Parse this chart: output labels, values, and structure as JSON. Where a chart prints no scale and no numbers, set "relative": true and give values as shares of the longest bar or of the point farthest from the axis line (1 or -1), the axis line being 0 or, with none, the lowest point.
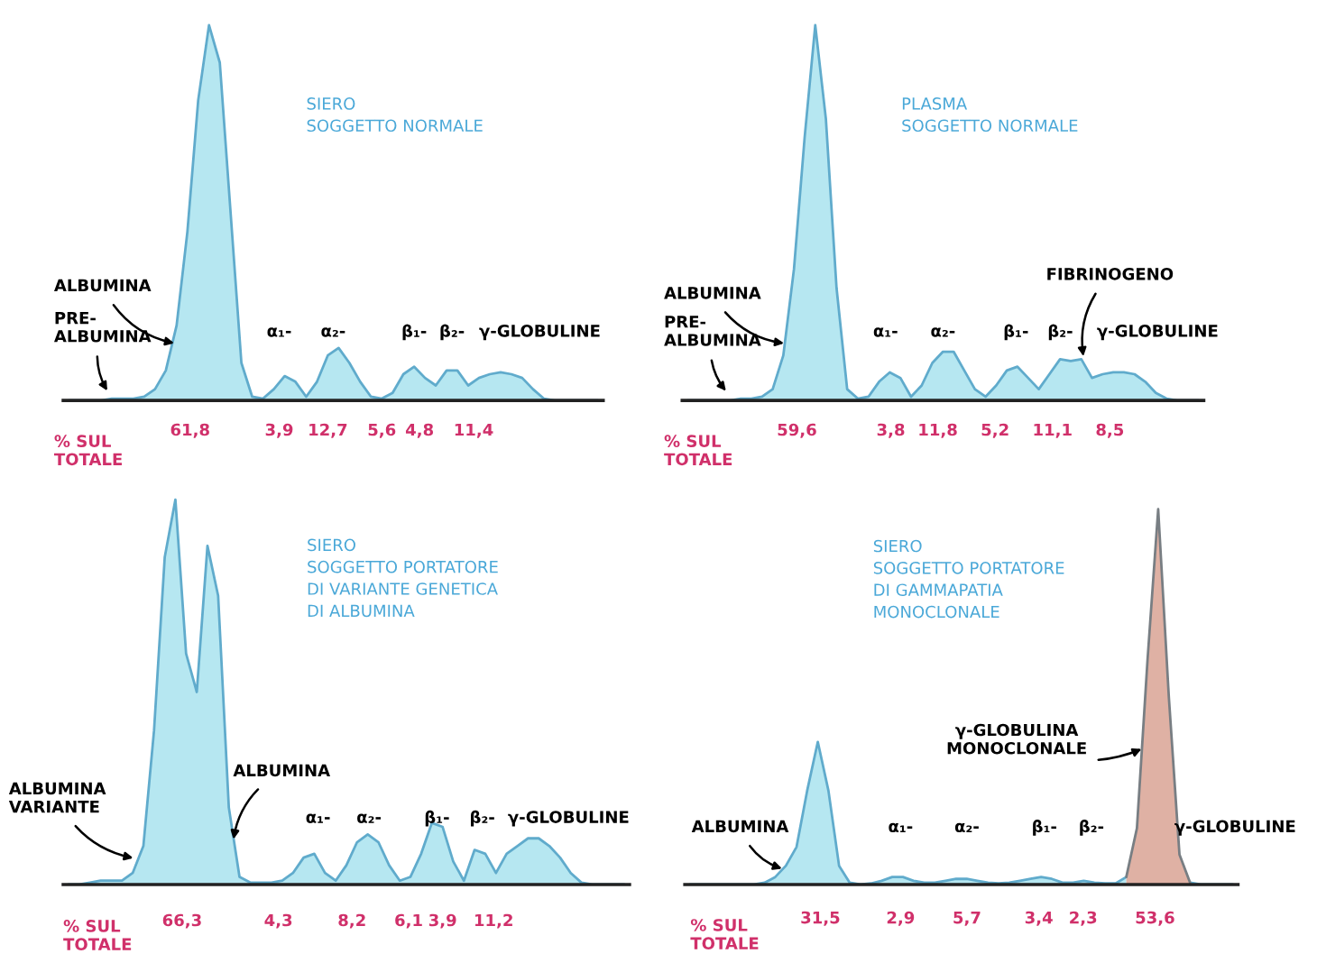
{
  "chart_data": [
    {
      "type": "area",
      "relative": true,
      "title": "SIERO\nSOGGETTO NORMALE",
      "categories": [
        null,
        null,
        null,
        null,
        null,
        null,
        null,
        null,
        null,
        null,
        null,
        null,
        null,
        null,
        null,
        null,
        null,
        null,
        null,
        null,
        null,
        null,
        null,
        null,
        null,
        null,
        null,
        null,
        null,
        null,
        null,
        null,
        null,
        null,
        null,
        null,
        null,
        null,
        null,
        null,
        null,
        null,
        null,
        null,
        null,
        null,
        null,
        null,
        null,
        null
      ],
      "series": [
        {
          "color": "#aee4f0",
          "values": [
            0,
            0,
            0,
            0,
            0.005,
            0.005,
            0.005,
            0.01,
            0.03,
            0.08,
            0.2,
            0.45,
            0.8,
            1,
            0.9,
            0.5,
            0.1,
            0.01,
            0.005,
            0.03,
            0.065,
            0.05,
            0.01,
            0.05,
            0.12,
            0.14,
            0.1,
            0.05,
            0.01,
            0.005,
            0.02,
            0.07,
            0.09,
            0.06,
            0.04,
            0.08,
            0.08,
            0.04,
            0.06,
            0.07,
            0.075,
            0.07,
            0.06,
            0.03,
            0.005,
            0,
            0,
            0,
            0,
            0
          ]
        }
      ],
      "annotations": [
        "ALBUMINA",
        "PRE-\nALBUMINA",
        "α₁-",
        "α₂-",
        "β₁-",
        "β₂-",
        "γ-GLOBULINE",
        "% SUL\nTOTALE",
        "61,8",
        "3,9",
        "12,7",
        "5,6",
        "4,8",
        "11,4"
      ]
    },
    {
      "type": "area",
      "relative": true,
      "title": "PLASMA\nSOGGETTO NORMALE",
      "categories": [
        null,
        null,
        null,
        null,
        null,
        null,
        null,
        null,
        null,
        null,
        null,
        null,
        null,
        null,
        null,
        null,
        null,
        null,
        null,
        null,
        null,
        null,
        null,
        null,
        null,
        null,
        null,
        null,
        null,
        null,
        null,
        null,
        null,
        null,
        null,
        null,
        null,
        null,
        null,
        null,
        null,
        null,
        null,
        null,
        null,
        null,
        null,
        null,
        null
      ],
      "series": [
        {
          "color": "#aee4f0",
          "values": [
            0,
            0,
            0,
            0,
            0,
            0.005,
            0.005,
            0.01,
            0.03,
            0.12,
            0.35,
            0.7,
            1,
            0.75,
            0.3,
            0.03,
            0.005,
            0.01,
            0.05,
            0.075,
            0.06,
            0.01,
            0.04,
            0.1,
            0.13,
            0.13,
            0.08,
            0.03,
            0.01,
            0.04,
            0.08,
            0.09,
            0.06,
            0.03,
            0.07,
            0.11,
            0.105,
            0.11,
            0.06,
            0.07,
            0.075,
            0.075,
            0.07,
            0.05,
            0.02,
            0.005,
            0,
            0,
            0
          ]
        }
      ],
      "annotations": [
        "FIBRINOGENO",
        "ALBUMINA",
        "PRE-\nALBUMINA",
        "α₁-",
        "α₂-",
        "β₁-",
        "β₂-",
        "γ-GLOBULINE",
        "% SUL\nTOTALE",
        "59,6",
        "3,8",
        "11,8",
        "5,2",
        "11,1",
        "8,5"
      ]
    },
    {
      "type": "area",
      "relative": true,
      "title": "SIERO\nSOGGETTO PORTATORE\nDI VARIANTE GENETICA\nDI ALBUMINA",
      "categories": [
        null,
        null,
        null,
        null,
        null,
        null,
        null,
        null,
        null,
        null,
        null,
        null,
        null,
        null,
        null,
        null,
        null,
        null,
        null,
        null,
        null,
        null,
        null,
        null,
        null,
        null,
        null,
        null,
        null,
        null,
        null,
        null,
        null,
        null,
        null,
        null,
        null,
        null,
        null,
        null,
        null,
        null,
        null,
        null,
        null,
        null,
        null,
        null,
        null,
        null,
        null,
        null,
        null
      ],
      "series": [
        {
          "color": "#aee4f0",
          "values": [
            0,
            0,
            0.005,
            0.01,
            0.01,
            0.01,
            0.03,
            0.1,
            0.4,
            0.85,
            1,
            0.6,
            0.5,
            0.88,
            0.75,
            0.2,
            0.02,
            0.005,
            0.005,
            0.005,
            0.01,
            0.03,
            0.07,
            0.08,
            0.03,
            0.01,
            0.05,
            0.11,
            0.13,
            0.11,
            0.05,
            0.01,
            0.02,
            0.08,
            0.16,
            0.15,
            0.06,
            0.01,
            0.09,
            0.08,
            0.03,
            0.08,
            0.1,
            0.12,
            0.12,
            0.1,
            0.07,
            0.03,
            0.005,
            0,
            0,
            0,
            0
          ]
        }
      ],
      "annotations": [
        "ALBUMINA\nVARIANTE",
        "ALBUMINA",
        "α₁-",
        "α₂-",
        "β₁-",
        "β₂-",
        "γ-GLOBULINE",
        "% SUL\nTOTALE",
        "66,3",
        "4,3",
        "8,2",
        "6,1",
        "3,9",
        "11,2"
      ]
    },
    {
      "type": "area",
      "relative": true,
      "title": "SIERO\nSOGGETTO PORTATORE\nDI GAMMAPATIA\nMONOCLONALE",
      "categories": [
        null,
        null,
        null,
        null,
        null,
        null,
        null,
        null,
        null,
        null,
        null,
        null,
        null,
        null,
        null,
        null,
        null,
        null,
        null,
        null,
        null,
        null,
        null,
        null,
        null,
        null,
        null,
        null,
        null,
        null,
        null,
        null,
        null,
        null,
        null,
        null,
        null,
        null,
        null,
        null,
        null,
        null,
        null,
        null,
        null,
        null,
        null,
        null,
        null,
        null,
        null,
        null
      ],
      "series": [
        {
          "color": "#aee4f0",
          "values": [
            0,
            0,
            0,
            0,
            0,
            0,
            0,
            0.005,
            0.02,
            0.05,
            0.1,
            0.25,
            0.38,
            0.25,
            0.05,
            0.005,
            0,
            0.003,
            0.01,
            0.02,
            0.02,
            0.01,
            0.005,
            0.005,
            0.01,
            0.015,
            0.015,
            0.01,
            0.005,
            0.003,
            0.005,
            0.01,
            0.015,
            0.02,
            0.015,
            0.005,
            0.005,
            0.01,
            0.005,
            0.003,
            0.003,
            0.02,
            null,
            null,
            null,
            null,
            null,
            0.005,
            0,
            0,
            0,
            0
          ]
        },
        {
          "color": "#dba89a",
          "values": [
            null,
            null,
            null,
            null,
            null,
            null,
            null,
            null,
            null,
            null,
            null,
            null,
            null,
            null,
            null,
            null,
            null,
            null,
            null,
            null,
            null,
            null,
            null,
            null,
            null,
            null,
            null,
            null,
            null,
            null,
            null,
            null,
            null,
            null,
            null,
            null,
            null,
            null,
            null,
            null,
            null,
            0.02,
            0.15,
            0.6,
            1,
            0.5,
            0.08,
            0.005,
            null,
            null,
            null,
            null
          ]
        }
      ],
      "annotations": [
        "γ-GLOBULINA\nMONOCLONALE",
        "ALBUMINA",
        "α₁-",
        "α₂-",
        "β₁-",
        "β₂-",
        "γ-GLOBULINE",
        "% SUL\nTOTALE",
        "31,5",
        "2,9",
        "5,7",
        "3,4",
        "2,3",
        "53,6"
      ]
    }
  ]
}
